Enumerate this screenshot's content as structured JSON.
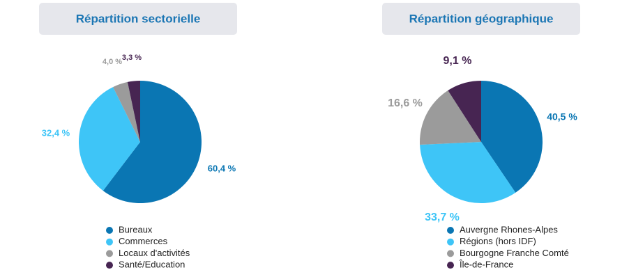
{
  "chart_data": [
    {
      "type": "pie",
      "title": "Répartition sectorielle",
      "categories": [
        "Bureaux",
        "Commerces",
        "Locaux d'activités",
        "Santé/Education"
      ],
      "values": [
        60.4,
        32.4,
        4.0,
        3.3
      ],
      "value_labels": [
        "60,4 %",
        "32,4 %",
        "4,0 %",
        "3,3 %"
      ],
      "colors": [
        "#0a76b3",
        "#3ec5f7",
        "#9b9b9b",
        "#472552"
      ]
    },
    {
      "type": "pie",
      "title": "Répartition géographique",
      "categories": [
        "Auvergne Rhones-Alpes",
        "Régions (hors IDF)",
        "Bourgogne Franche Comté",
        "Île-de-France"
      ],
      "values": [
        40.5,
        33.7,
        16.6,
        9.1
      ],
      "value_labels": [
        "40,5 %",
        "33,7 %",
        "16,6 %",
        "9,1 %"
      ],
      "colors": [
        "#0a76b3",
        "#3ec5f7",
        "#9b9b9b",
        "#472552"
      ]
    }
  ]
}
